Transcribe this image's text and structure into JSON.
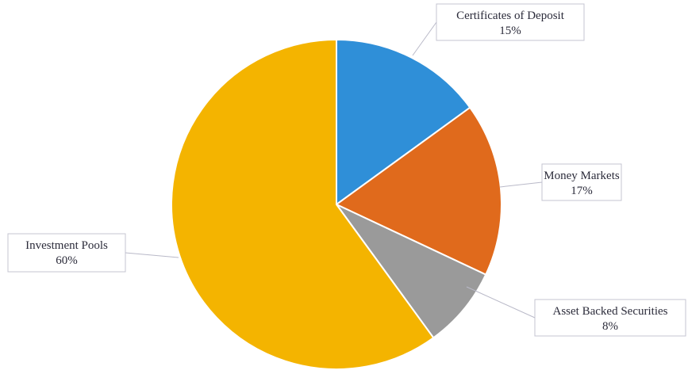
{
  "chart_data": {
    "type": "pie",
    "title": "",
    "slices": [
      {
        "label": "Certificates of Deposit",
        "value": 15,
        "value_label": "15%",
        "color": "#2f8fd8"
      },
      {
        "label": "Money Markets",
        "value": 17,
        "value_label": "17%",
        "color": "#e06a1c"
      },
      {
        "label": "Asset Backed Securities",
        "value": 8,
        "value_label": "8%",
        "color": "#9a9a9a"
      },
      {
        "label": "Investment Pools",
        "value": 60,
        "value_label": "60%",
        "color": "#f4b400"
      }
    ],
    "start_angle": "12 o'clock",
    "direction": "clockwise",
    "legend": "none",
    "labels": "callouts with leader lines"
  }
}
